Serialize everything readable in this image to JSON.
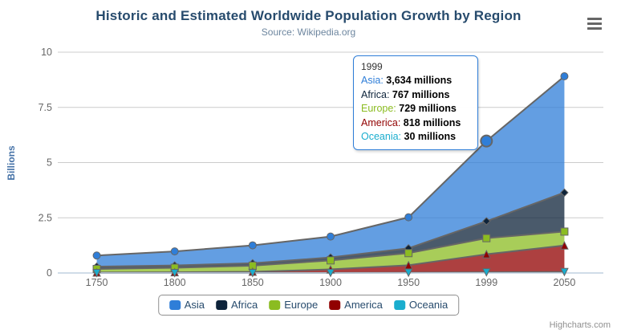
{
  "header": {
    "title": "Historic and Estimated Worldwide Population Growth by Region",
    "subtitle": "Source: Wikipedia.org"
  },
  "export_menu": {
    "icon": "hamburger-icon"
  },
  "y_axis": {
    "title": "Billions",
    "ticks": [
      0,
      2.5,
      5,
      7.5,
      10
    ]
  },
  "x_axis": {
    "categories": [
      "1750",
      "1800",
      "1850",
      "1900",
      "1950",
      "1999",
      "2050"
    ]
  },
  "chart_data": {
    "type": "area",
    "stacking": "normal",
    "title": "Historic and Estimated Worldwide Population Growth by Region",
    "subtitle": "Source: Wikipedia.org",
    "xlabel": "",
    "ylabel": "Billions",
    "ylim": [
      0,
      10
    ],
    "y_unit": "billions",
    "values_unit": "millions",
    "grid": true,
    "legend_position": "bottom",
    "categories": [
      "1750",
      "1800",
      "1850",
      "1900",
      "1950",
      "1999",
      "2050"
    ],
    "series": [
      {
        "name": "Asia",
        "color": "#2f7ed8",
        "marker": "circle",
        "values": [
          502,
          635,
          809,
          947,
          1402,
          3634,
          5268
        ]
      },
      {
        "name": "Africa",
        "color": "#0d233a",
        "marker": "diamond",
        "values": [
          106,
          107,
          111,
          133,
          221,
          767,
          1766
        ]
      },
      {
        "name": "Europe",
        "color": "#8bbc21",
        "marker": "square",
        "values": [
          163,
          203,
          276,
          408,
          547,
          729,
          628
        ]
      },
      {
        "name": "America",
        "color": "#910000",
        "marker": "triangle",
        "values": [
          18,
          31,
          54,
          156,
          339,
          818,
          1201
        ]
      },
      {
        "name": "Oceania",
        "color": "#1aadce",
        "marker": "triangle-down",
        "values": [
          2,
          2,
          2,
          6,
          13,
          30,
          46
        ]
      }
    ],
    "line_color": "#666666",
    "fill_opacity": 0.75,
    "hover": {
      "series": "Asia",
      "category": "1999"
    }
  },
  "tooltip": {
    "header": "1999",
    "rows": [
      {
        "name": "Asia",
        "value": "3,634 millions",
        "color": "#2f7ed8"
      },
      {
        "name": "Africa",
        "value": "767 millions",
        "color": "#0d233a"
      },
      {
        "name": "Europe",
        "value": "729 millions",
        "color": "#8bbc21"
      },
      {
        "name": "America",
        "value": "818 millions",
        "color": "#910000"
      },
      {
        "name": "Oceania",
        "value": "30 millions",
        "color": "#1aadce"
      }
    ]
  },
  "credits": {
    "label": "Highcharts.com"
  },
  "colors": {
    "title": "#274b6d",
    "subtitle": "#6d869f",
    "axis_label": "#666666",
    "axis_title": "#4572a7",
    "grid_line": "#cccccc",
    "axis_line": "#c0d0e0",
    "legend_text": "#274b6d",
    "credits": "#909090",
    "tooltip_border": "#2f7ed8"
  }
}
